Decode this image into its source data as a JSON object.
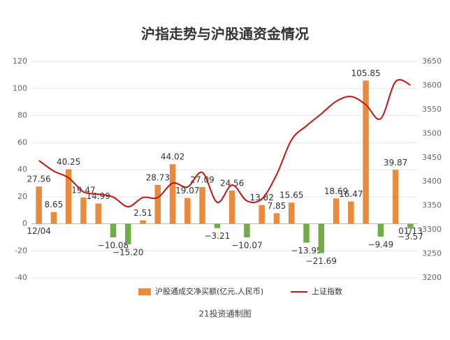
{
  "chart_data": {
    "type": "bar_line",
    "title": "沪指走势与沪股通资金情况",
    "source": "21投资通制图",
    "categories": [
      "12/04",
      null,
      null,
      null,
      null,
      null,
      null,
      null,
      null,
      null,
      null,
      null,
      null,
      null,
      null,
      null,
      null,
      null,
      null,
      null,
      null,
      null,
      null,
      null,
      null,
      "01/13"
    ],
    "series": [
      {
        "name": "沪股通成交净买额(亿元,人民币)",
        "type": "bar",
        "color": "#ea8a3c",
        "negative_color": "#70ad47",
        "values": [
          27.56,
          8.65,
          40.25,
          19.47,
          14.99,
          -10.08,
          -15.2,
          2.51,
          28.73,
          44.02,
          19.07,
          27.09,
          -3.21,
          24.56,
          -10.07,
          13.82,
          7.85,
          15.65,
          -13.95,
          -21.69,
          18.69,
          16.47,
          105.85,
          -9.49,
          39.87,
          -3.57
        ],
        "value_labels": [
          "27.56",
          "8.65",
          "40.25",
          "19.47",
          "14.99",
          "−10.08",
          "−15.20",
          "2.51",
          "28.73",
          "44.02",
          "19.07",
          "27.09",
          "−3.21",
          "24.56",
          "−10.07",
          "13.82",
          "7.85",
          "15.65",
          "−13.95",
          "−21.69",
          "18.69",
          "16.47",
          "105.85",
          "−9.49",
          "39.87",
          "−3.57"
        ]
      },
      {
        "name": "上证指数",
        "type": "line",
        "color": "#cc1111",
        "axis": "y2",
        "values": [
          3444,
          3422,
          3408,
          3379,
          3374,
          3368,
          3348,
          3367,
          3367,
          3397,
          3389,
          3419,
          3357,
          3393,
          3360,
          3364,
          3415,
          3487,
          3516,
          3541,
          3567,
          3577,
          3560,
          3531,
          3608,
          3601
        ]
      }
    ],
    "ylim": [
      -40,
      120
    ],
    "yticks": [
      -40,
      -20,
      0,
      20,
      40,
      60,
      80,
      100,
      120
    ],
    "y2lim": [
      3200,
      3650
    ],
    "y2ticks": [
      3200,
      3250,
      3300,
      3350,
      3400,
      3450,
      3500,
      3550,
      3600,
      3650
    ],
    "grid": true,
    "legend": "bottom"
  }
}
